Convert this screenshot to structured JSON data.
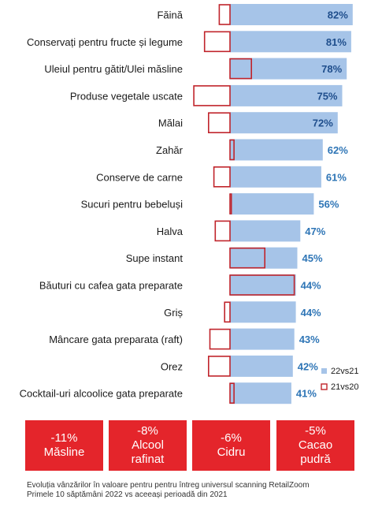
{
  "chart_data": {
    "type": "bar",
    "orientation": "horizontal",
    "categories": [
      "Făină",
      "Conservați pentru fructe și legume",
      "Uleiul pentru gătit/Ulei măsline",
      "Produse vegetale uscate",
      "Mălai",
      "Zahăr",
      "Conserve de carne",
      "Sucuri pentru bebeluși",
      "Halva",
      "Supe instant",
      "Băuturi cu cafea gata preparate",
      "Griș",
      "Mâncare gata preparata (raft)",
      "Orez",
      "Cocktail-uri alcoolice gata preparate"
    ],
    "series": [
      {
        "name": "22vs21",
        "values": [
          82,
          81,
          78,
          75,
          72,
          62,
          61,
          56,
          47,
          45,
          44,
          44,
          43,
          42,
          41
        ],
        "value_labels": [
          "82%",
          "81%",
          "78%",
          "75%",
          "72%",
          "62%",
          "61%",
          "56%",
          "47%",
          "45%",
          "44%",
          "44%",
          "43%",
          "42%",
          "41%"
        ]
      },
      {
        "name": "21vs20",
        "values": [
          -8,
          -19,
          16,
          -27,
          -16,
          3,
          -12,
          1,
          -11,
          26,
          48,
          -4,
          -15,
          -16,
          3
        ]
      }
    ],
    "legend_position": "bottom-right",
    "grid": false,
    "colors": {
      "bar_22vs21": "#a6c4e8",
      "bar_21vs20_outline": "#c0242b",
      "value_label_inside": "#1f4e8c",
      "value_label_outside": "#2e75b6"
    }
  },
  "tiles": [
    {
      "value": "-11%",
      "label": "Măsline"
    },
    {
      "value": "-8%",
      "label": "Alcool\nrafinat"
    },
    {
      "value": "-6%",
      "label": "Cidru"
    },
    {
      "value": "-5%",
      "label": "Cacao\npudră"
    }
  ],
  "tile_color": "#e4252b",
  "footnote": {
    "line1": "Evoluția vânzărilor în valoare pentru pentru întreg universul scanning RetailZoom",
    "line2": "Primele 10 săptămâni 2022 vs aceeași perioadă din 2021"
  }
}
